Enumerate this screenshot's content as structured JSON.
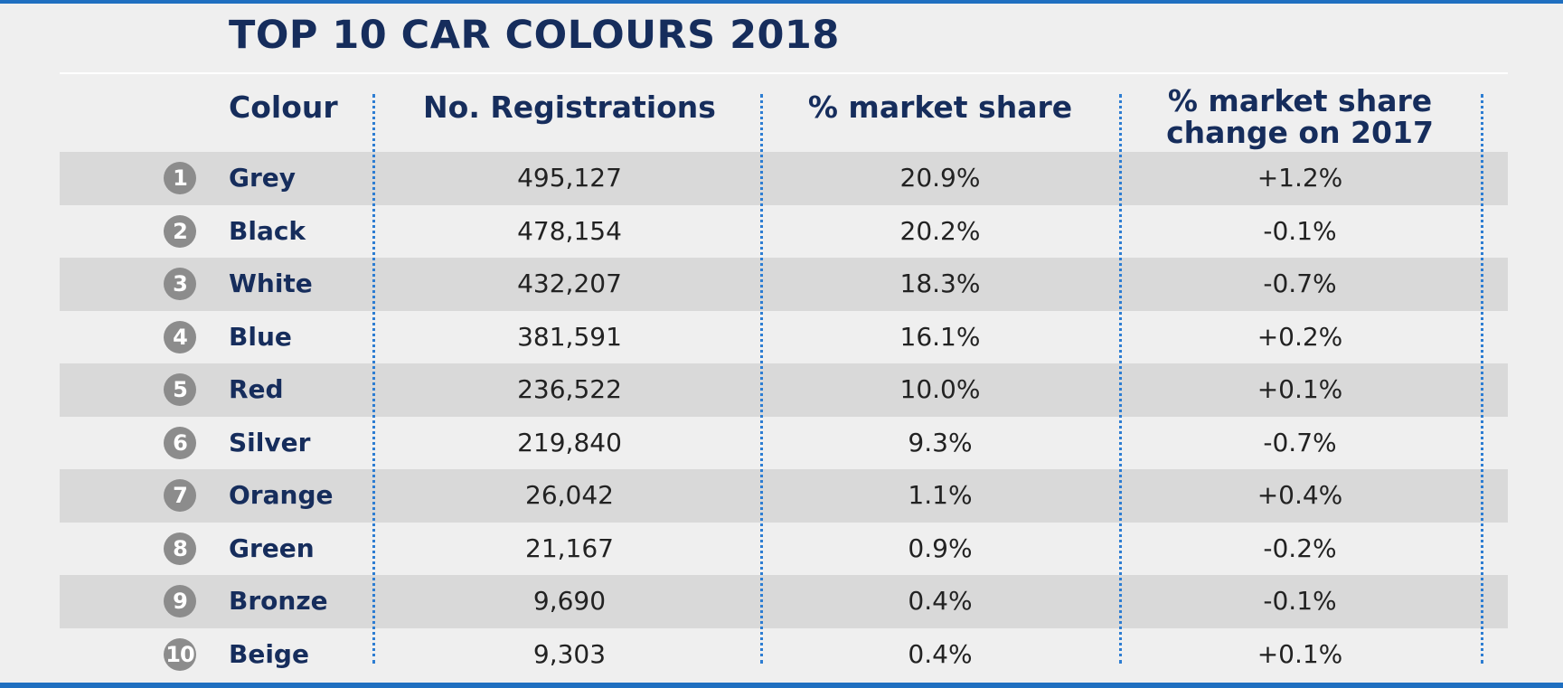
{
  "chart_data": {
    "type": "table",
    "title": "TOP 10 CAR COLOURS 2018",
    "columns": [
      "Colour",
      "No. Registrations",
      "% market share",
      "% market share change on 2017"
    ],
    "rows": [
      {
        "rank": "1",
        "colour": "Grey",
        "registrations": "495,127",
        "share": "20.9%",
        "change": "+1.2%"
      },
      {
        "rank": "2",
        "colour": "Black",
        "registrations": "478,154",
        "share": "20.2%",
        "change": "-0.1%"
      },
      {
        "rank": "3",
        "colour": "White",
        "registrations": "432,207",
        "share": "18.3%",
        "change": "-0.7%"
      },
      {
        "rank": "4",
        "colour": "Blue",
        "registrations": "381,591",
        "share": "16.1%",
        "change": "+0.2%"
      },
      {
        "rank": "5",
        "colour": "Red",
        "registrations": "236,522",
        "share": "10.0%",
        "change": "+0.1%"
      },
      {
        "rank": "6",
        "colour": "Silver",
        "registrations": "219,840",
        "share": "9.3%",
        "change": "-0.7%"
      },
      {
        "rank": "7",
        "colour": "Orange",
        "registrations": "26,042",
        "share": "1.1%",
        "change": "+0.4%"
      },
      {
        "rank": "8",
        "colour": "Green",
        "registrations": "21,167",
        "share": "0.9%",
        "change": "-0.2%"
      },
      {
        "rank": "9",
        "colour": "Bronze",
        "registrations": "9,690",
        "share": "0.4%",
        "change": "-0.1%"
      },
      {
        "rank": "10",
        "colour": "Beige",
        "registrations": "9,303",
        "share": "0.4%",
        "change": "+0.1%"
      }
    ]
  },
  "table": {
    "title": "TOP 10 CAR COLOURS 2018",
    "headers": {
      "colour": "Colour",
      "registrations": "No. Registrations",
      "share": "% market share",
      "change_line1": "% market share",
      "change_line2": "change on 2017"
    }
  },
  "colors": {
    "accent": "#1f6fc0",
    "heading": "#162d5c",
    "row_shade": "#d9d9d9",
    "badge": "#8c8c8c",
    "background": "#efefef"
  }
}
